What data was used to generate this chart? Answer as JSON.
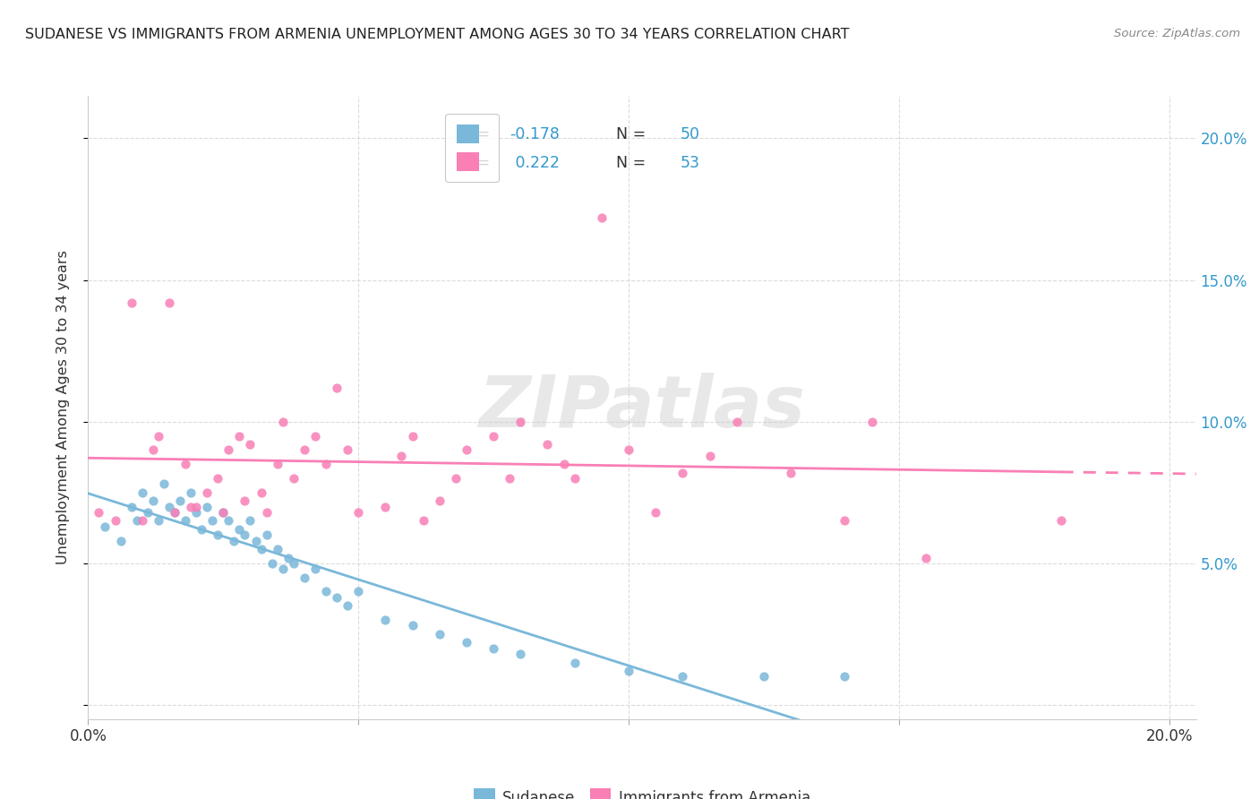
{
  "title": "SUDANESE VS IMMIGRANTS FROM ARMENIA UNEMPLOYMENT AMONG AGES 30 TO 34 YEARS CORRELATION CHART",
  "source": "Source: ZipAtlas.com",
  "ylabel": "Unemployment Among Ages 30 to 34 years",
  "xlim": [
    0.0,
    0.205
  ],
  "ylim": [
    -0.005,
    0.215
  ],
  "sudanese_color": "#7ab8d9",
  "armenia_color": "#f97fb5",
  "sudanese_R": -0.178,
  "sudanese_N": 50,
  "armenia_R": 0.222,
  "armenia_N": 53,
  "watermark": "ZIPatlas",
  "legend_label_1": "Sudanese",
  "legend_label_2": "Immigrants from Armenia",
  "tick_color": "#3399cc",
  "sudanese_x": [
    0.003,
    0.006,
    0.008,
    0.009,
    0.01,
    0.011,
    0.012,
    0.013,
    0.014,
    0.015,
    0.016,
    0.017,
    0.018,
    0.019,
    0.02,
    0.021,
    0.022,
    0.023,
    0.024,
    0.025,
    0.026,
    0.027,
    0.028,
    0.029,
    0.03,
    0.031,
    0.032,
    0.033,
    0.034,
    0.035,
    0.036,
    0.037,
    0.038,
    0.04,
    0.042,
    0.044,
    0.046,
    0.048,
    0.05,
    0.055,
    0.06,
    0.065,
    0.07,
    0.075,
    0.08,
    0.09,
    0.1,
    0.11,
    0.125,
    0.14
  ],
  "sudanese_y": [
    0.063,
    0.058,
    0.07,
    0.065,
    0.075,
    0.068,
    0.072,
    0.065,
    0.078,
    0.07,
    0.068,
    0.072,
    0.065,
    0.075,
    0.068,
    0.062,
    0.07,
    0.065,
    0.06,
    0.068,
    0.065,
    0.058,
    0.062,
    0.06,
    0.065,
    0.058,
    0.055,
    0.06,
    0.05,
    0.055,
    0.048,
    0.052,
    0.05,
    0.045,
    0.048,
    0.04,
    0.038,
    0.035,
    0.04,
    0.03,
    0.028,
    0.025,
    0.022,
    0.02,
    0.018,
    0.015,
    0.012,
    0.01,
    0.01,
    0.01
  ],
  "armenia_x": [
    0.002,
    0.005,
    0.008,
    0.01,
    0.012,
    0.013,
    0.015,
    0.016,
    0.018,
    0.019,
    0.02,
    0.022,
    0.024,
    0.025,
    0.026,
    0.028,
    0.029,
    0.03,
    0.032,
    0.033,
    0.035,
    0.036,
    0.038,
    0.04,
    0.042,
    0.044,
    0.046,
    0.048,
    0.05,
    0.055,
    0.058,
    0.06,
    0.062,
    0.065,
    0.068,
    0.07,
    0.075,
    0.078,
    0.08,
    0.085,
    0.088,
    0.09,
    0.095,
    0.1,
    0.105,
    0.11,
    0.115,
    0.12,
    0.13,
    0.14,
    0.145,
    0.155,
    0.18
  ],
  "armenia_y": [
    0.068,
    0.065,
    0.142,
    0.065,
    0.09,
    0.095,
    0.142,
    0.068,
    0.085,
    0.07,
    0.07,
    0.075,
    0.08,
    0.068,
    0.09,
    0.095,
    0.072,
    0.092,
    0.075,
    0.068,
    0.085,
    0.1,
    0.08,
    0.09,
    0.095,
    0.085,
    0.112,
    0.09,
    0.068,
    0.07,
    0.088,
    0.095,
    0.065,
    0.072,
    0.08,
    0.09,
    0.095,
    0.08,
    0.1,
    0.092,
    0.085,
    0.08,
    0.172,
    0.09,
    0.068,
    0.082,
    0.088,
    0.1,
    0.082,
    0.065,
    0.1,
    0.052,
    0.065
  ]
}
